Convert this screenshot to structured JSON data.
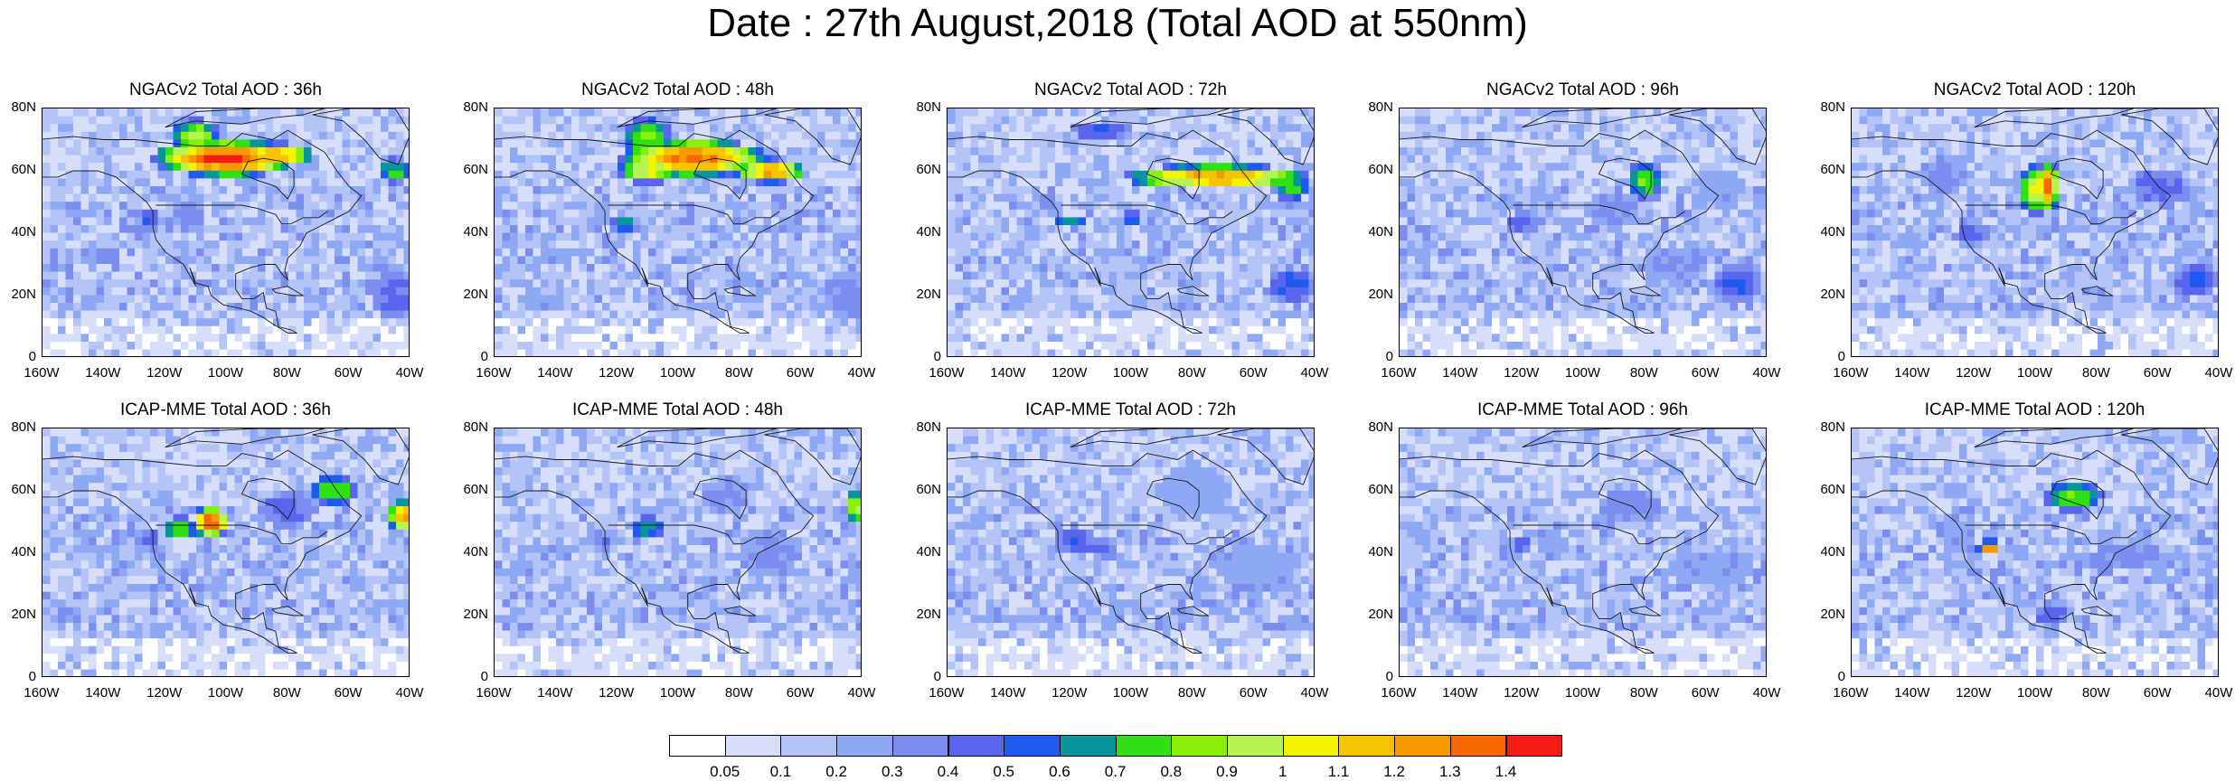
{
  "title": "Date : 27th August,2018 (Total AOD at 550nm)",
  "panels": [
    {
      "title": "NGACv2 Total AOD : 36h",
      "row": 0,
      "col": 0
    },
    {
      "title": "NGACv2 Total AOD : 48h",
      "row": 0,
      "col": 1
    },
    {
      "title": "NGACv2 Total AOD : 72h",
      "row": 0,
      "col": 2
    },
    {
      "title": "NGACv2 Total AOD : 96h",
      "row": 0,
      "col": 3
    },
    {
      "title": "NGACv2 Total AOD : 120h",
      "row": 0,
      "col": 4
    },
    {
      "title": "ICAP-MME Total AOD : 36h",
      "row": 1,
      "col": 0
    },
    {
      "title": "ICAP-MME Total AOD : 48h",
      "row": 1,
      "col": 1
    },
    {
      "title": "ICAP-MME Total AOD : 72h",
      "row": 1,
      "col": 2
    },
    {
      "title": "ICAP-MME Total AOD : 96h",
      "row": 1,
      "col": 3
    },
    {
      "title": "ICAP-MME Total AOD : 120h",
      "row": 1,
      "col": 4
    }
  ],
  "lat_ticks": [
    "80N",
    "60N",
    "40N",
    "20N",
    "0"
  ],
  "lon_ticks": [
    "160W",
    "140W",
    "120W",
    "100W",
    "80W",
    "60W",
    "40W"
  ],
  "colorbar": {
    "labels": [
      "0.05",
      "0.1",
      "0.2",
      "0.3",
      "0.4",
      "0.5",
      "0.6",
      "0.7",
      "0.8",
      "0.9",
      "1",
      "1.1",
      "1.2",
      "1.3",
      "1.4"
    ],
    "colors": [
      "#ffffff",
      "#d6defa",
      "#b4c4f6",
      "#8fa8f4",
      "#7b8ef0",
      "#5866ee",
      "#1f5af0",
      "#06959a",
      "#2ee014",
      "#88f00a",
      "#b6f454",
      "#f4f400",
      "#f6c400",
      "#f69a00",
      "#f66a00",
      "#f41c14"
    ]
  },
  "colors": {
    "land_outline": "#1a1a1a"
  }
}
